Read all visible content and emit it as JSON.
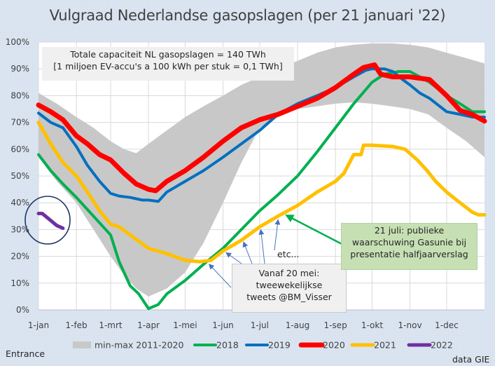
{
  "chart_data": {
    "type": "line",
    "title": "Vulgraad Nederlandse gasopslagen (per 21 januari '22)",
    "xlabel": "",
    "ylabel": "",
    "ylim": [
      0,
      100
    ],
    "xlim_days": [
      0,
      365
    ],
    "grid": true,
    "legend_position": "bottom",
    "y_ticks": [
      "0%",
      "10%",
      "20%",
      "30%",
      "40%",
      "50%",
      "60%",
      "70%",
      "80%",
      "90%",
      "100%"
    ],
    "x_ticks": [
      {
        "label": "1-jan",
        "day": 0
      },
      {
        "label": "1-feb",
        "day": 31
      },
      {
        "label": "1-mrt",
        "day": 59
      },
      {
        "label": "1-apr",
        "day": 90
      },
      {
        "label": "1-mei",
        "day": 120
      },
      {
        "label": "1-jun",
        "day": 151
      },
      {
        "label": "1-jul",
        "day": 181
      },
      {
        "label": "1-aug",
        "day": 212
      },
      {
        "label": "1-sep",
        "day": 243
      },
      {
        "label": "1-okt",
        "day": 273
      },
      {
        "label": "1-nov",
        "day": 304
      },
      {
        "label": "1-dec",
        "day": 334
      }
    ],
    "band": {
      "name": "min-max 2011-2020",
      "color": "#c8c8c8",
      "x": [
        0,
        15,
        31,
        45,
        59,
        70,
        80,
        90,
        105,
        120,
        135,
        151,
        166,
        181,
        196,
        212,
        228,
        243,
        258,
        273,
        289,
        304,
        319,
        334,
        350,
        365
      ],
      "upper": [
        81,
        77,
        72,
        68,
        63,
        60,
        58.5,
        62,
        67,
        72,
        76,
        80,
        84,
        87,
        90,
        93,
        96,
        98,
        99,
        99.5,
        99.5,
        99,
        98,
        96,
        94,
        92
      ],
      "lower": [
        57,
        48,
        40,
        30,
        20,
        13,
        8,
        5,
        8,
        14,
        25,
        40,
        55,
        68,
        72,
        75,
        76,
        77,
        77.5,
        77,
        76,
        75,
        73,
        68,
        63,
        57
      ]
    },
    "series": [
      {
        "name": "2018",
        "color": "#00b050",
        "x": [
          0,
          10,
          20,
          31,
          45,
          59,
          66,
          75,
          82,
          90,
          98,
          105,
          120,
          135,
          151,
          166,
          181,
          196,
          212,
          228,
          243,
          258,
          273,
          283,
          295,
          304,
          312,
          320,
          334,
          345,
          355,
          365
        ],
        "values": [
          58,
          52,
          47,
          42,
          35,
          28,
          18,
          9,
          6,
          0.5,
          2,
          6,
          11,
          17,
          23,
          30,
          37,
          43,
          50,
          59,
          68,
          77,
          85,
          88,
          89,
          89,
          87,
          85,
          80,
          77,
          74,
          74
        ]
      },
      {
        "name": "2019",
        "color": "#0070c0",
        "x": [
          0,
          10,
          20,
          31,
          40,
          50,
          59,
          66,
          75,
          85,
          90,
          98,
          105,
          120,
          135,
          151,
          166,
          181,
          196,
          212,
          228,
          243,
          258,
          268,
          273,
          283,
          290,
          298,
          304,
          312,
          320,
          334,
          345,
          355,
          365
        ],
        "values": [
          73.5,
          70,
          68,
          61,
          54,
          48,
          43.5,
          42.5,
          42,
          41,
          41,
          40.5,
          44,
          48,
          52,
          57,
          62,
          67,
          73,
          77,
          80,
          83,
          87,
          89.5,
          90,
          90,
          89,
          86,
          84,
          81,
          79,
          74,
          73,
          72,
          72
        ]
      },
      {
        "name": "2020",
        "color": "#ff0000",
        "x": [
          0,
          10,
          20,
          31,
          40,
          50,
          59,
          70,
          80,
          90,
          96,
          105,
          120,
          135,
          151,
          166,
          181,
          196,
          212,
          228,
          243,
          258,
          266,
          275,
          280,
          290,
          304,
          312,
          320,
          334,
          345,
          355,
          365
        ],
        "values": [
          76.5,
          74,
          71,
          65,
          62,
          58,
          56,
          51,
          47,
          45,
          44.5,
          48,
          52,
          57,
          63,
          68,
          71,
          73,
          76,
          79,
          83,
          88,
          90.5,
          91.5,
          88,
          87,
          87,
          86.5,
          86,
          80,
          74.5,
          73,
          70.5
        ]
      },
      {
        "name": "2021",
        "color": "#ffc000",
        "x": [
          0,
          10,
          20,
          31,
          40,
          50,
          59,
          66,
          75,
          90,
          105,
          120,
          132,
          141,
          151,
          166,
          181,
          196,
          212,
          228,
          243,
          250,
          258,
          264,
          266,
          273,
          290,
          300,
          310,
          318,
          325,
          334,
          345,
          355,
          360,
          365
        ],
        "values": [
          70,
          62,
          55,
          50,
          44,
          37,
          32,
          31,
          28,
          23,
          21,
          18.5,
          18,
          18.5,
          22,
          26,
          31,
          35,
          39,
          44,
          48,
          51,
          58,
          58,
          61.5,
          61.5,
          61,
          60,
          56,
          52,
          48,
          44,
          40,
          36.5,
          35.5,
          35.5
        ]
      },
      {
        "name": "2022",
        "color": "#7030a0",
        "x": [
          0,
          3,
          7,
          11,
          15,
          20
        ],
        "values": [
          36,
          36,
          34.5,
          33,
          31.5,
          30.5
        ]
      }
    ],
    "annotations": [
      {
        "id": "capacity",
        "lines": [
          "Totale capaciteit NL gasopslagen = 140 TWh",
          "[1 miljoen EV-accu's a 100 kWh per stuk = 0,1 TWh]"
        ]
      },
      {
        "id": "tweets",
        "lines": [
          "Vanaf 20 mei:",
          "tweewekelijkse",
          "tweets @BM_Visser"
        ],
        "arrow_days": [
          140,
          154,
          168,
          182,
          196
        ]
      },
      {
        "id": "etc",
        "lines": [
          "etc..."
        ]
      },
      {
        "id": "gasunie",
        "lines": [
          "21 juli: publieke",
          "waarschuwing Gasunie bij",
          "presentatie halfjaarverslag"
        ],
        "arrow_day": 201
      }
    ],
    "highlight_circle": {
      "series": "2022",
      "day_range": [
        0,
        20
      ]
    }
  },
  "footer": {
    "left": "Entrance",
    "right": "data GIE"
  }
}
